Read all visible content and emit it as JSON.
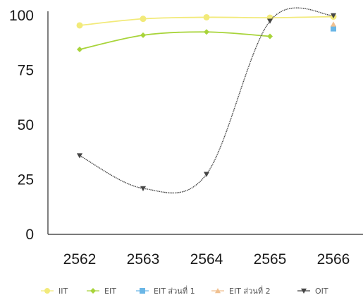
{
  "chart_data": {
    "type": "line",
    "categories": [
      "2562",
      "2563",
      "2564",
      "2565",
      "2566"
    ],
    "yticks": [
      "0",
      "25",
      "50",
      "75",
      "100"
    ],
    "ylim": [
      0,
      100
    ],
    "grid": false,
    "legend_position": "bottom",
    "series": [
      {
        "name": "IIT",
        "color": "#f2ea7a",
        "marker": "circle",
        "values": [
          95.5,
          98.5,
          99.2,
          99.0,
          99.5
        ]
      },
      {
        "name": "EIT",
        "color": "#a8d43a",
        "marker": "diamond",
        "values": [
          84.5,
          91.0,
          92.5,
          90.5,
          null
        ]
      },
      {
        "name": "EIT ส่วนที่ 1",
        "color": "#6ab6e6",
        "marker": "square",
        "values": [
          null,
          null,
          null,
          null,
          94.0
        ]
      },
      {
        "name": "EIT ส่วนที่ 2",
        "color": "#f0c090",
        "marker": "triangle-up",
        "values": [
          null,
          null,
          null,
          null,
          96.0
        ]
      },
      {
        "name": "OIT",
        "color": "#454545",
        "marker": "triangle-down",
        "values": [
          36.0,
          21.0,
          27.5,
          97.5,
          100.0
        ]
      }
    ]
  }
}
